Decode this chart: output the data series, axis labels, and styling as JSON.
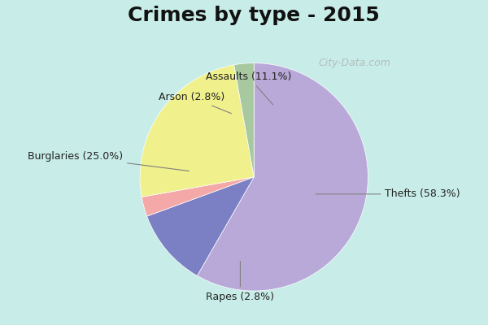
{
  "title": "Crimes by type - 2015",
  "slices": [
    {
      "label": "Thefts (58.3%)",
      "value": 58.3,
      "color": "#b9a9d9"
    },
    {
      "label": "Assaults (11.1%)",
      "value": 11.1,
      "color": "#7b7fc4"
    },
    {
      "label": "Arson (2.8%)",
      "value": 2.8,
      "color": "#f4a9a8"
    },
    {
      "label": "Burglaries (25.0%)",
      "value": 25.0,
      "color": "#f0f08c"
    },
    {
      "label": "Rapes (2.8%)",
      "value": 2.8,
      "color": "#a8c8a0"
    }
  ],
  "background_color": "#c8ede8",
  "title_fontsize": 18,
  "title_fontweight": "bold",
  "label_fontsize": 9,
  "startangle": 90,
  "watermark": "City-Data.com"
}
